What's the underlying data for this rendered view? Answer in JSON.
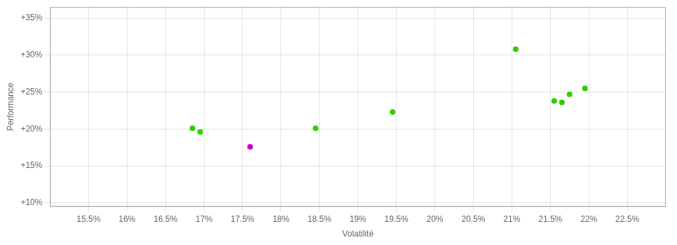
{
  "chart_data": {
    "type": "scatter",
    "xlabel": "Volatilité",
    "ylabel": "Performance",
    "xlim": [
      15.0,
      23.0
    ],
    "ylim": [
      9.5,
      36.5
    ],
    "xticks": [
      {
        "value": 15.5,
        "label": "15.5%"
      },
      {
        "value": 16.0,
        "label": "16%"
      },
      {
        "value": 16.5,
        "label": "16.5%"
      },
      {
        "value": 17.0,
        "label": "17%"
      },
      {
        "value": 17.5,
        "label": "17.5%"
      },
      {
        "value": 18.0,
        "label": "18%"
      },
      {
        "value": 18.5,
        "label": "18.5%"
      },
      {
        "value": 19.0,
        "label": "19%"
      },
      {
        "value": 19.5,
        "label": "19.5%"
      },
      {
        "value": 20.0,
        "label": "20%"
      },
      {
        "value": 20.5,
        "label": "20.5%"
      },
      {
        "value": 21.0,
        "label": "21%"
      },
      {
        "value": 21.5,
        "label": "21.5%"
      },
      {
        "value": 22.0,
        "label": "22%"
      },
      {
        "value": 22.5,
        "label": "22.5%"
      }
    ],
    "yticks": [
      {
        "value": 10,
        "label": "+10%"
      },
      {
        "value": 15,
        "label": "+15%"
      },
      {
        "value": 20,
        "label": "+20%"
      },
      {
        "value": 25,
        "label": "+25%"
      },
      {
        "value": 30,
        "label": "+30%"
      },
      {
        "value": 35,
        "label": "+35%"
      }
    ],
    "series": [
      {
        "color": "#33cc00",
        "x": [
          16.85,
          16.95,
          18.45,
          19.45,
          21.05,
          21.55,
          21.65,
          21.75,
          21.95
        ],
        "values": [
          20.1,
          19.6,
          20.1,
          22.3,
          30.8,
          23.8,
          23.6,
          24.7,
          25.5
        ]
      },
      {
        "color": "#cc00cc",
        "x": [
          17.6
        ],
        "values": [
          17.6
        ]
      }
    ],
    "grid": true
  }
}
